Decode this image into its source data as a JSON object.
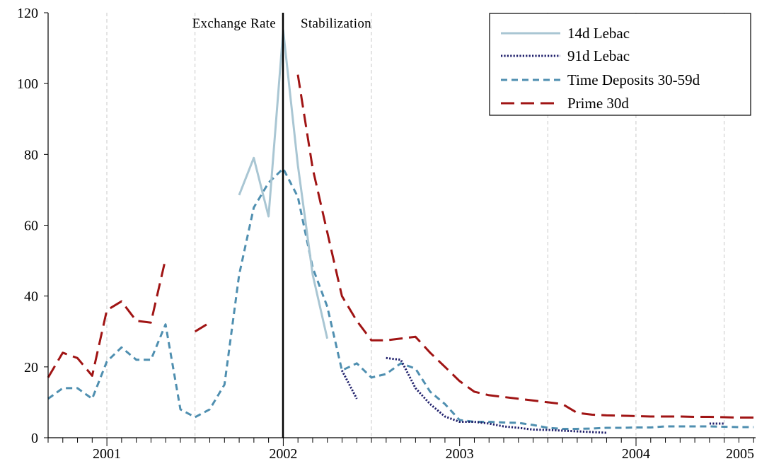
{
  "chart_data": {
    "type": "line",
    "title": "",
    "xlabel": "",
    "ylabel": "",
    "ylim": [
      0,
      120
    ],
    "xlim": [
      2000.667,
      2005.1
    ],
    "grid": "vertical dashed lines at year boundaries and mid-years",
    "yticks": [
      "0",
      "20",
      "40",
      "60",
      "80",
      "100",
      "120"
    ],
    "year_labels": [
      {
        "label": "2001",
        "x": 2001.0
      },
      {
        "label": "2002",
        "x": 2002.0
      },
      {
        "label": "2003",
        "x": 2003.0
      },
      {
        "label": "2004",
        "x": 2004.0
      },
      {
        "label": "2005",
        "x": 2005.0
      }
    ],
    "annotations": [
      "Exchange Rate",
      "Stabilization"
    ],
    "vertical_marker": {
      "x": 2002.0,
      "style": "solid"
    },
    "legend_position": "top-right",
    "series": [
      {
        "name": "14d Lebac",
        "color": "#a9c6d3",
        "style": "solid",
        "points": [
          [
            2001.75,
            68.5
          ],
          [
            2001.833,
            79
          ],
          [
            2001.917,
            62.5
          ],
          [
            2002.0,
            115
          ],
          [
            2002.083,
            77
          ],
          [
            2002.167,
            46
          ],
          [
            2002.25,
            28
          ]
        ]
      },
      {
        "name": "91d Lebac",
        "color": "#1f1f6b",
        "style": "dotted",
        "segments": [
          [
            [
              2002.333,
              19
            ],
            [
              2002.417,
              11
            ]
          ],
          [
            [
              2002.583,
              22.5
            ],
            [
              2002.667,
              22
            ],
            [
              2002.75,
              14
            ],
            [
              2002.833,
              9.5
            ],
            [
              2002.917,
              6
            ],
            [
              2003.0,
              4.5
            ],
            [
              2003.083,
              4.5
            ],
            [
              2003.167,
              4
            ],
            [
              2003.25,
              3.2
            ],
            [
              2003.333,
              2.8
            ],
            [
              2003.417,
              2.3
            ],
            [
              2003.5,
              2.2
            ],
            [
              2003.583,
              2
            ],
            [
              2003.667,
              1.8
            ],
            [
              2003.75,
              1.6
            ],
            [
              2003.833,
              1.4
            ]
          ],
          [
            [
              2004.417,
              4
            ],
            [
              2004.5,
              4
            ]
          ]
        ]
      },
      {
        "name": "Time Deposits 30-59d",
        "color": "#4f8fb0",
        "style": "dashed",
        "points": [
          [
            2000.667,
            11
          ],
          [
            2000.75,
            14
          ],
          [
            2000.833,
            14
          ],
          [
            2000.917,
            11
          ],
          [
            2001.0,
            21.5
          ],
          [
            2001.083,
            25.5
          ],
          [
            2001.167,
            22
          ],
          [
            2001.25,
            22
          ],
          [
            2001.333,
            32
          ],
          [
            2001.417,
            8
          ],
          [
            2001.5,
            5.8
          ],
          [
            2001.583,
            8
          ],
          [
            2001.667,
            15
          ],
          [
            2001.75,
            46
          ],
          [
            2001.833,
            65
          ],
          [
            2001.917,
            72
          ],
          [
            2002.0,
            76
          ],
          [
            2002.083,
            68
          ],
          [
            2002.167,
            48
          ],
          [
            2002.25,
            37
          ],
          [
            2002.333,
            19
          ],
          [
            2002.417,
            21
          ],
          [
            2002.5,
            17
          ],
          [
            2002.583,
            18
          ],
          [
            2002.667,
            21
          ],
          [
            2002.75,
            19.5
          ],
          [
            2002.833,
            13
          ],
          [
            2002.917,
            9.5
          ],
          [
            2003.0,
            5
          ],
          [
            2003.083,
            4.5
          ],
          [
            2003.167,
            4.5
          ],
          [
            2003.25,
            4.3
          ],
          [
            2003.333,
            4.2
          ],
          [
            2003.417,
            3.6
          ],
          [
            2003.5,
            2.8
          ],
          [
            2003.583,
            2.5
          ],
          [
            2003.667,
            2.5
          ],
          [
            2003.75,
            2.6
          ],
          [
            2003.833,
            2.8
          ],
          [
            2003.917,
            2.8
          ],
          [
            2004.0,
            2.9
          ],
          [
            2004.083,
            2.9
          ],
          [
            2004.167,
            3.2
          ],
          [
            2004.25,
            3.2
          ],
          [
            2004.333,
            3.2
          ],
          [
            2004.417,
            3.2
          ],
          [
            2004.5,
            3.1
          ],
          [
            2004.583,
            3.0
          ],
          [
            2004.667,
            3.0
          ]
        ]
      },
      {
        "name": "Prime 30d",
        "color": "#a01414",
        "style": "longdash",
        "segments": [
          [
            [
              2000.667,
              17
            ],
            [
              2000.75,
              24
            ],
            [
              2000.833,
              22.5
            ],
            [
              2000.917,
              17.5
            ],
            [
              2001.0,
              36
            ],
            [
              2001.083,
              38.5
            ],
            [
              2001.167,
              33
            ],
            [
              2001.25,
              32.5
            ],
            [
              2001.333,
              50.5
            ]
          ],
          [
            [
              2001.5,
              30
            ],
            [
              2001.583,
              32.5
            ]
          ],
          [
            [
              2002.083,
              102.5
            ],
            [
              2002.167,
              76
            ],
            [
              2002.25,
              58
            ],
            [
              2002.333,
              40
            ],
            [
              2002.417,
              33
            ],
            [
              2002.5,
              27.5
            ],
            [
              2002.583,
              27.5
            ],
            [
              2002.667,
              28
            ],
            [
              2002.75,
              28.5
            ],
            [
              2002.833,
              24
            ],
            [
              2002.917,
              20
            ],
            [
              2003.0,
              16
            ],
            [
              2003.083,
              13
            ],
            [
              2003.167,
              12
            ],
            [
              2003.25,
              11.5
            ],
            [
              2003.333,
              11
            ],
            [
              2003.417,
              10.5
            ],
            [
              2003.5,
              10
            ],
            [
              2003.583,
              9.5
            ],
            [
              2003.667,
              7
            ],
            [
              2003.75,
              6.5
            ],
            [
              2003.833,
              6.3
            ],
            [
              2003.917,
              6.2
            ],
            [
              2004.0,
              6.1
            ],
            [
              2004.083,
              6.0
            ],
            [
              2004.167,
              6.0
            ],
            [
              2004.25,
              6.0
            ],
            [
              2004.333,
              5.9
            ],
            [
              2004.417,
              5.9
            ],
            [
              2004.5,
              5.8
            ],
            [
              2004.583,
              5.7
            ],
            [
              2004.667,
              5.7
            ]
          ]
        ]
      }
    ]
  }
}
